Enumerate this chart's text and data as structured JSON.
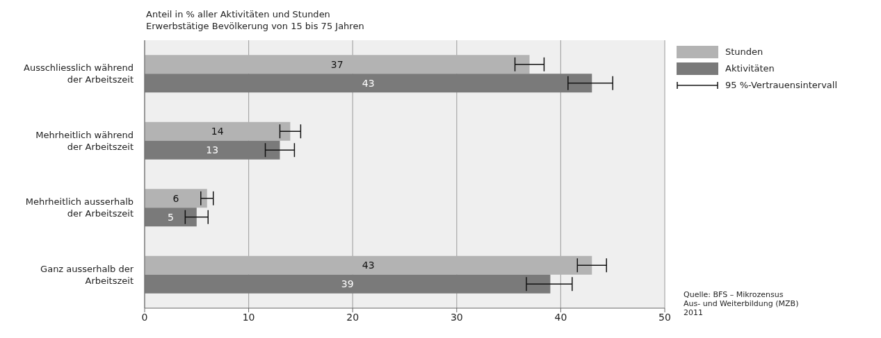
{
  "chart_data": {
    "type": "bar",
    "orientation": "horizontal",
    "title": "Anteil in % aller Aktivitäten und Stunden",
    "subtitle": "Erwerbstätige Bevölkerung von 15 bis 75 Jahren",
    "categories": [
      "Ausschliesslich während der Arbeitszeit",
      "Mehrheitlich während der Arbeitszeit",
      "Mehrheitlich ausserhalb der Arbeitszeit",
      "Ganz ausserhalb der Arbeitszeit"
    ],
    "series": [
      {
        "name": "Stunden",
        "color": "#b3b3b3",
        "values": [
          37,
          14,
          6,
          43
        ],
        "errors": [
          [
            35.6,
            38.4
          ],
          [
            13.0,
            15.0
          ],
          [
            5.4,
            6.6
          ],
          [
            41.6,
            44.4
          ]
        ]
      },
      {
        "name": "Aktivitäten",
        "color": "#7a7a7a",
        "values": [
          43,
          13,
          5,
          39
        ],
        "errors": [
          [
            40.7,
            45.0
          ],
          [
            11.6,
            14.4
          ],
          [
            3.9,
            6.1
          ],
          [
            36.7,
            41.1
          ]
        ]
      }
    ],
    "xlim": [
      0,
      50
    ],
    "xticks": [
      0,
      10,
      20,
      30,
      40,
      50
    ],
    "grid": "x",
    "legend": "right",
    "data_labels": true,
    "annotations": [
      "95 %-Vertrauensintervall",
      "Quelle: BFS – Mikrozensus Aus- und Weiterbildung (MZB) 2011"
    ]
  }
}
